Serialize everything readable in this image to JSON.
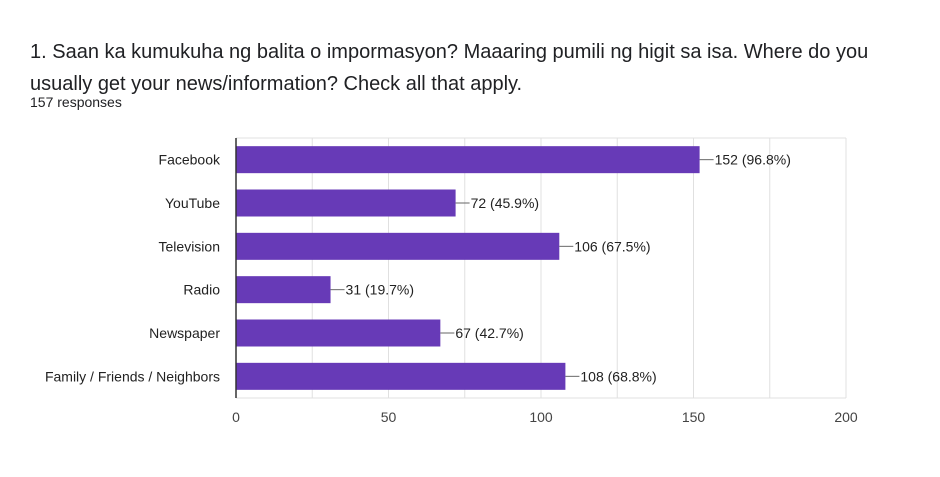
{
  "question": {
    "title": "1. Saan ka kumukuha ng balita o impormasyon? Maaaring pumili ng higit sa isa. Where do you usually get your news/information? Check all that apply.",
    "responses": "157 responses"
  },
  "colors": {
    "bar": "#673ab7",
    "gridline": "#e0e0e0",
    "axis": "#333333"
  },
  "chart_data": {
    "type": "bar",
    "orientation": "horizontal",
    "categories": [
      "Facebook",
      "YouTube",
      "Television",
      "Radio",
      "Newspaper",
      "Family / Friends / Neighbors"
    ],
    "values": [
      152,
      72,
      106,
      31,
      67,
      108
    ],
    "data_labels": [
      "152 (96.8%)",
      "72 (45.9%)",
      "106 (67.5%)",
      "31 (19.7%)",
      "67 (42.7%)",
      "108 (68.8%)"
    ],
    "xlim": [
      0,
      200
    ],
    "xticks": [
      0,
      50,
      100,
      150,
      200
    ],
    "grid": true
  }
}
